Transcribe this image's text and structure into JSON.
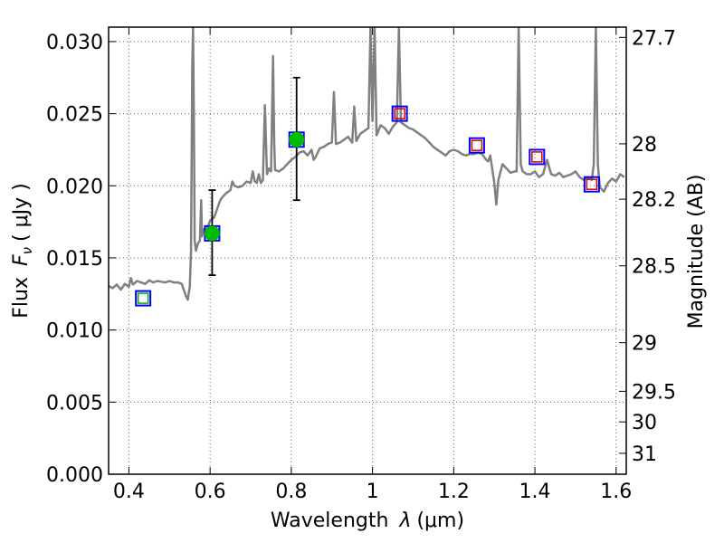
{
  "chart_data": {
    "type": "line",
    "title": "",
    "xlabel": "Wavelength",
    "xlabel_symbol": "λ",
    "xlabel_unit": "(μm)",
    "ylabel": "Flux",
    "ylabel_symbol": "F",
    "ylabel_symbol_subscript": "ν",
    "ylabel_unit": "( μJy )",
    "y2label": "Magnitude (AB)",
    "xlim": [
      0.35,
      1.625
    ],
    "ylim": [
      0.0,
      0.031
    ],
    "grid": true,
    "x_ticks": [
      0.4,
      0.6,
      0.8,
      1.0,
      1.2,
      1.4,
      1.6
    ],
    "x_tick_labels": [
      "0.4",
      "0.6",
      "0.8",
      "1",
      "1.2",
      "1.4",
      "1.6"
    ],
    "y_ticks": [
      0.0,
      0.005,
      0.01,
      0.015,
      0.02,
      0.025,
      0.03
    ],
    "y_tick_labels": [
      "0.000",
      "0.005",
      "0.010",
      "0.015",
      "0.020",
      "0.025",
      "0.030"
    ],
    "y2_ticks": [
      {
        "flux": 0.03029,
        "label": "27.7"
      },
      {
        "flux": 0.02291,
        "label": "28"
      },
      {
        "flux": 0.01907,
        "label": "28.2"
      },
      {
        "flux": 0.01445,
        "label": "28.5"
      },
      {
        "flux": 0.00912,
        "label": "29"
      },
      {
        "flux": 0.00575,
        "label": "29.5"
      },
      {
        "flux": 0.00363,
        "label": "30"
      },
      {
        "flux": 0.00145,
        "label": "31"
      }
    ],
    "colors": {
      "spectrum": "#808080",
      "filled_point": "#00bb00",
      "square_blue": "#0000ff",
      "square_red": "#dd0000",
      "square_green": "#00aa00",
      "errorbar": "#000000"
    },
    "series": [
      {
        "kind": "spectrum",
        "points": [
          [
            0.35,
            0.01305
          ],
          [
            0.36,
            0.0129
          ],
          [
            0.37,
            0.01315
          ],
          [
            0.38,
            0.0128
          ],
          [
            0.39,
            0.0132
          ],
          [
            0.4,
            0.013
          ],
          [
            0.405,
            0.0136
          ],
          [
            0.41,
            0.01315
          ],
          [
            0.42,
            0.0134
          ],
          [
            0.43,
            0.0133
          ],
          [
            0.44,
            0.0132
          ],
          [
            0.45,
            0.01345
          ],
          [
            0.46,
            0.0133
          ],
          [
            0.47,
            0.0134
          ],
          [
            0.48,
            0.01335
          ],
          [
            0.49,
            0.0133
          ],
          [
            0.5,
            0.0134
          ],
          [
            0.51,
            0.0133
          ],
          [
            0.52,
            0.0133
          ],
          [
            0.53,
            0.0132
          ],
          [
            0.54,
            0.0124
          ],
          [
            0.545,
            0.0121
          ],
          [
            0.55,
            0.013
          ],
          [
            0.553,
            0.0155
          ],
          [
            0.556,
            0.028
          ],
          [
            0.558,
            0.031
          ],
          [
            0.56,
            0.025
          ],
          [
            0.562,
            0.0162
          ],
          [
            0.565,
            0.0155
          ],
          [
            0.57,
            0.016
          ],
          [
            0.575,
            0.0162
          ],
          [
            0.578,
            0.019
          ],
          [
            0.58,
            0.0165
          ],
          [
            0.585,
            0.017
          ],
          [
            0.59,
            0.0168
          ],
          [
            0.6,
            0.0176
          ],
          [
            0.61,
            0.0178
          ],
          [
            0.62,
            0.0186
          ],
          [
            0.625,
            0.019
          ],
          [
            0.63,
            0.0192
          ],
          [
            0.64,
            0.0195
          ],
          [
            0.65,
            0.0197
          ],
          [
            0.655,
            0.0203
          ],
          [
            0.66,
            0.02
          ],
          [
            0.67,
            0.0199
          ],
          [
            0.68,
            0.02
          ],
          [
            0.69,
            0.0203
          ],
          [
            0.7,
            0.0202
          ],
          [
            0.705,
            0.021
          ],
          [
            0.71,
            0.0203
          ],
          [
            0.715,
            0.0202
          ],
          [
            0.72,
            0.0208
          ],
          [
            0.725,
            0.0202
          ],
          [
            0.73,
            0.0204
          ],
          [
            0.735,
            0.0256
          ],
          [
            0.74,
            0.0208
          ],
          [
            0.745,
            0.0212
          ],
          [
            0.75,
            0.021
          ],
          [
            0.755,
            0.029
          ],
          [
            0.758,
            0.023
          ],
          [
            0.76,
            0.0211
          ],
          [
            0.77,
            0.021
          ],
          [
            0.78,
            0.0212
          ],
          [
            0.79,
            0.0215
          ],
          [
            0.8,
            0.0218
          ],
          [
            0.81,
            0.022
          ],
          [
            0.82,
            0.0223
          ],
          [
            0.83,
            0.0224
          ],
          [
            0.84,
            0.0221
          ],
          [
            0.85,
            0.0225
          ],
          [
            0.855,
            0.0218
          ],
          [
            0.86,
            0.022
          ],
          [
            0.87,
            0.0226
          ],
          [
            0.88,
            0.0227
          ],
          [
            0.89,
            0.0229
          ],
          [
            0.9,
            0.023
          ],
          [
            0.905,
            0.0265
          ],
          [
            0.91,
            0.0229
          ],
          [
            0.92,
            0.023
          ],
          [
            0.93,
            0.0232
          ],
          [
            0.94,
            0.0234
          ],
          [
            0.95,
            0.023
          ],
          [
            0.955,
            0.0255
          ],
          [
            0.96,
            0.0231
          ],
          [
            0.97,
            0.0236
          ],
          [
            0.98,
            0.0238
          ],
          [
            0.99,
            0.024
          ],
          [
            0.995,
            0.031
          ],
          [
            1.0,
            0.0245
          ],
          [
            1.005,
            0.031
          ],
          [
            1.01,
            0.0235
          ],
          [
            1.02,
            0.0242
          ],
          [
            1.03,
            0.024
          ],
          [
            1.04,
            0.0236
          ],
          [
            1.05,
            0.0241
          ],
          [
            1.06,
            0.0244
          ],
          [
            1.065,
            0.031
          ],
          [
            1.07,
            0.0244
          ],
          [
            1.08,
            0.0242
          ],
          [
            1.09,
            0.024
          ],
          [
            1.1,
            0.0239
          ],
          [
            1.11,
            0.0237
          ],
          [
            1.12,
            0.0235
          ],
          [
            1.13,
            0.0233
          ],
          [
            1.14,
            0.023
          ],
          [
            1.15,
            0.0227
          ],
          [
            1.16,
            0.0225
          ],
          [
            1.17,
            0.0223
          ],
          [
            1.18,
            0.0221
          ],
          [
            1.19,
            0.0224
          ],
          [
            1.2,
            0.0225
          ],
          [
            1.21,
            0.0224
          ],
          [
            1.22,
            0.0222
          ],
          [
            1.23,
            0.0221
          ],
          [
            1.24,
            0.0222
          ],
          [
            1.25,
            0.0222
          ],
          [
            1.26,
            0.0223
          ],
          [
            1.27,
            0.0222
          ],
          [
            1.28,
            0.0218
          ],
          [
            1.285,
            0.0217
          ],
          [
            1.29,
            0.0221
          ],
          [
            1.3,
            0.0202
          ],
          [
            1.305,
            0.0187
          ],
          [
            1.31,
            0.0204
          ],
          [
            1.32,
            0.0215
          ],
          [
            1.33,
            0.0212
          ],
          [
            1.34,
            0.0209
          ],
          [
            1.35,
            0.021
          ],
          [
            1.355,
            0.021
          ],
          [
            1.36,
            0.031
          ],
          [
            1.365,
            0.0215
          ],
          [
            1.37,
            0.021
          ],
          [
            1.38,
            0.0208
          ],
          [
            1.39,
            0.0208
          ],
          [
            1.4,
            0.021
          ],
          [
            1.41,
            0.0206
          ],
          [
            1.42,
            0.0208
          ],
          [
            1.43,
            0.0218
          ],
          [
            1.44,
            0.0208
          ],
          [
            1.45,
            0.0207
          ],
          [
            1.46,
            0.0209
          ],
          [
            1.47,
            0.0206
          ],
          [
            1.48,
            0.0207
          ],
          [
            1.49,
            0.0208
          ],
          [
            1.5,
            0.021
          ],
          [
            1.51,
            0.0206
          ],
          [
            1.52,
            0.0204
          ],
          [
            1.53,
            0.0206
          ],
          [
            1.54,
            0.0204
          ],
          [
            1.545,
            0.0215
          ],
          [
            1.55,
            0.031
          ],
          [
            1.555,
            0.0215
          ],
          [
            1.56,
            0.0199
          ],
          [
            1.57,
            0.0196
          ],
          [
            1.58,
            0.0202
          ],
          [
            1.59,
            0.0205
          ],
          [
            1.6,
            0.0203
          ],
          [
            1.61,
            0.0208
          ],
          [
            1.62,
            0.0206
          ]
        ]
      },
      {
        "kind": "model-squares",
        "points": [
          {
            "x": 0.435,
            "y": 0.0122,
            "inner": "green"
          },
          {
            "x": 0.605,
            "y": 0.0167,
            "inner": "none"
          },
          {
            "x": 0.813,
            "y": 0.0232,
            "inner": "none"
          },
          {
            "x": 1.067,
            "y": 0.025,
            "inner": "red"
          },
          {
            "x": 1.257,
            "y": 0.0228,
            "inner": "red"
          },
          {
            "x": 1.405,
            "y": 0.022,
            "inner": "red"
          },
          {
            "x": 1.54,
            "y": 0.0201,
            "inner": "red"
          }
        ]
      },
      {
        "kind": "observed-points",
        "points": [
          {
            "x": 0.605,
            "y": 0.0167,
            "ylo": 0.0138,
            "yhi": 0.0197
          },
          {
            "x": 0.813,
            "y": 0.0232,
            "ylo": 0.019,
            "yhi": 0.0275
          }
        ]
      }
    ]
  }
}
